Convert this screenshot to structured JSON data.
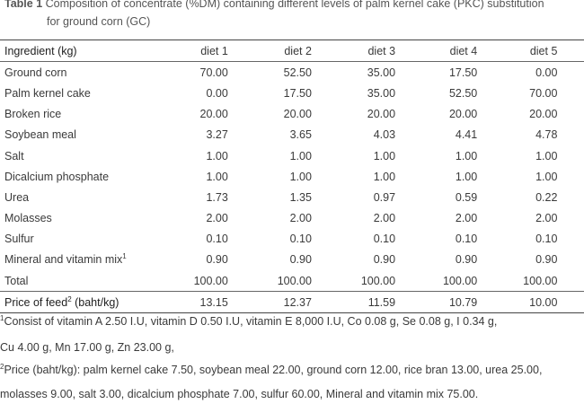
{
  "caption": {
    "label": "Table 1",
    "line1": "Composition of concentrate (%DM) containing different levels of palm kernel cake (PKC) substitution",
    "line2": "for ground corn (GC)"
  },
  "table": {
    "header": [
      "Ingredient (kg)",
      "diet 1",
      "diet 2",
      "diet 3",
      "diet 4",
      "diet 5"
    ],
    "rows": [
      {
        "name": "Ground corn",
        "values": [
          "70.00",
          "52.50",
          "35.00",
          "17.50",
          "0.00"
        ]
      },
      {
        "name": "Palm kernel cake",
        "values": [
          "0.00",
          "17.50",
          "35.00",
          "52.50",
          "70.00"
        ]
      },
      {
        "name": "Broken rice",
        "values": [
          "20.00",
          "20.00",
          "20.00",
          "20.00",
          "20.00"
        ]
      },
      {
        "name": "Soybean meal",
        "values": [
          "3.27",
          "3.65",
          "4.03",
          "4.41",
          "4.78"
        ]
      },
      {
        "name": "Salt",
        "values": [
          "1.00",
          "1.00",
          "1.00",
          "1.00",
          "1.00"
        ]
      },
      {
        "name": "Dicalcium phosphate",
        "values": [
          "1.00",
          "1.00",
          "1.00",
          "1.00",
          "1.00"
        ]
      },
      {
        "name": "Urea",
        "values": [
          "1.73",
          "1.35",
          "0.97",
          "0.59",
          "0.22"
        ]
      },
      {
        "name": "Molasses",
        "values": [
          "2.00",
          "2.00",
          "2.00",
          "2.00",
          "2.00"
        ]
      },
      {
        "name": "Sulfur",
        "values": [
          "0.10",
          "0.10",
          "0.10",
          "0.10",
          "0.10"
        ]
      },
      {
        "name": "Mineral and vitamin mix",
        "sup": "1",
        "values": [
          "0.90",
          "0.90",
          "0.90",
          "0.90",
          "0.90"
        ]
      },
      {
        "name": "Total",
        "values": [
          "100.00",
          "100.00",
          "100.00",
          "100.00",
          "100.00"
        ]
      }
    ],
    "price_row": {
      "name_before": "Price of feed",
      "sup": "2",
      "name_after": " (baht/kg)",
      "values": [
        "13.15",
        "12.37",
        "11.59",
        "10.79",
        "10.00"
      ]
    }
  },
  "footnotes": {
    "note1_sup": "1",
    "note1_line1": "Consist of vitamin A 2.50 I.U, vitamin D 0.50 I.U, vitamin E 8,000 I.U, Co 0.08 g, Se 0.08 g, I 0.34 g,",
    "note1_line2": "Cu 4.00 g, Mn 17.00 g, Zn 23.00 g,",
    "note2_sup": "2",
    "note2_line1": "Price (baht/kg): palm kernel cake 7.50, soybean meal 22.00, ground corn 12.00, rice bran 13.00, urea 25.00,",
    "note2_line2": "molasses 9.00, salt 3.00, dicalcium phosphate 7.00, sulfur 60.00, Mineral and vitamin mix 75.00."
  }
}
